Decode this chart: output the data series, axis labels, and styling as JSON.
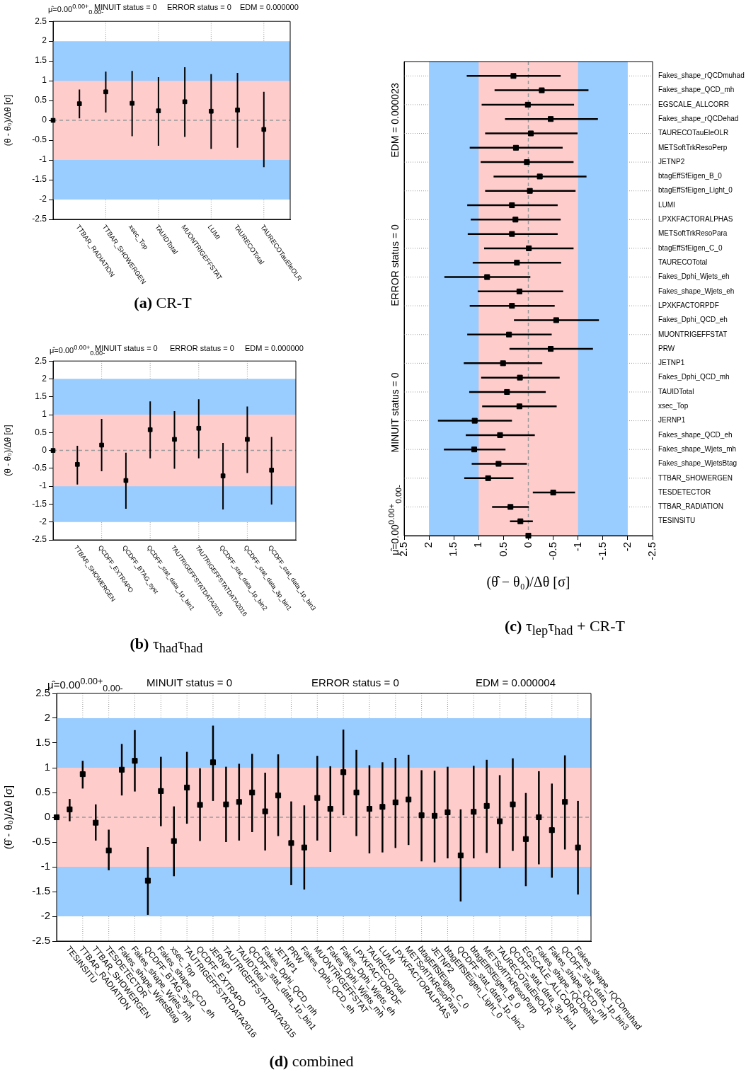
{
  "chart_data": [
    {
      "type": "scatter",
      "title": "(a) CR-T",
      "annotations": [
        "μ̂=0.00$^{0.00+}$$_{0.00-}$",
        "MINUIT status = 0",
        "ERROR status = 0",
        "EDM = 0.000000"
      ],
      "ylabel": "(θ - θ₀)/Δθ [σ]",
      "categories": [
        null,
        "TTBAR_RADIATION",
        "TTBAR_SHOWERGEN",
        "xsec_Top",
        "TAUIDTotal",
        "MUONTRIGEFFSTAT",
        "LUMI",
        "TAURECOTotal",
        "TAURECOTauEleOLR"
      ],
      "values": [
        0,
        0.42,
        0.72,
        0.43,
        0.24,
        0.47,
        0.23,
        0.26,
        -0.23
      ],
      "errors": [
        null,
        [
          0.05,
          0.78
        ],
        [
          0.2,
          1.23
        ],
        [
          -0.4,
          1.25
        ],
        [
          -0.64,
          1.09
        ],
        [
          -0.42,
          1.34
        ],
        [
          -0.72,
          1.17
        ],
        [
          -0.69,
          1.2
        ],
        [
          -1.18,
          0.72
        ]
      ],
      "color": "#000000",
      "marker": "square",
      "ylim": [
        -2.5,
        2.5
      ],
      "yticks": [
        -2.5,
        -2,
        -1.5,
        -1,
        -0.5,
        0,
        0.5,
        1,
        1.5,
        2,
        2.5
      ],
      "grid": "x",
      "bands": [
        {
          "axis": "y",
          "from": -2,
          "to": 2,
          "color": "#99ccff"
        },
        {
          "axis": "y",
          "from": -1,
          "to": 1,
          "color": "#ffcccc"
        }
      ],
      "ref_lines": [
        {
          "axis": "y",
          "value": 0,
          "color": "#999999",
          "line_style": "dashed"
        }
      ]
    },
    {
      "type": "scatter",
      "title": "(b) τ$_{had}$τ$_{had}$",
      "annotations": [
        "μ̂=0.00$^{0.00+}$$_{0.00-}$",
        "MINUIT status = 0",
        "ERROR status = 0",
        "EDM = 0.000000"
      ],
      "ylabel": "(θ - θ₀)/Δθ [σ]",
      "categories": [
        null,
        "TTBAR_SHOWERGEN",
        "QCDFF_EXTRAPO",
        "QCDFF_BTAG_syst",
        "QCDFF_stat_data_1p_bin1",
        "TAUTRIGEFFSTATDATA2015",
        "TAUTRIGEFFSTATDATA2016",
        "QCDFF_stat_data_1p_bin2",
        "QCDFF_stat_data_3p_bin1",
        "QCDFF_stat_data_1p_bin3"
      ],
      "values": [
        0,
        -0.39,
        0.15,
        -0.84,
        0.58,
        0.31,
        0.62,
        -0.71,
        0.31,
        -0.55
      ],
      "errors": [
        null,
        [
          -0.95,
          0.13
        ],
        [
          -0.58,
          0.88
        ],
        [
          -1.63,
          -0.06
        ],
        [
          -0.22,
          1.37
        ],
        [
          -0.51,
          1.1
        ],
        [
          -0.22,
          1.43
        ],
        [
          -1.65,
          0.21
        ],
        [
          -0.63,
          1.23
        ],
        [
          -1.51,
          0.38
        ]
      ],
      "color": "#000000",
      "marker": "square",
      "ylim": [
        -2.5,
        2.5
      ],
      "yticks": [
        -2.5,
        -2,
        -1.5,
        -1,
        -0.5,
        0,
        0.5,
        1,
        1.5,
        2,
        2.5
      ],
      "grid": "x",
      "bands": [
        {
          "axis": "y",
          "from": -2,
          "to": 2,
          "color": "#99ccff"
        },
        {
          "axis": "y",
          "from": -1,
          "to": 1,
          "color": "#ffcccc"
        }
      ],
      "ref_lines": [
        {
          "axis": "y",
          "value": 0,
          "color": "#999999",
          "line_style": "dashed"
        }
      ]
    },
    {
      "type": "scatter",
      "orientation": "horizontal",
      "title": "(c) τ$_{lep}$τ$_{had}$ + CR-T",
      "annotations": [
        "μ̂=0.00$^{0.00+}$$_{0.00-}$",
        "MINUIT status = 0",
        "ERROR status = 0",
        "EDM = 0.000023"
      ],
      "xlabel": "(θ̂ − θ₀)/Δθ [σ]",
      "categories": [
        "Fakes_shape_rQCDmuhad",
        "Fakes_shape_QCD_mh",
        "EGSCALE_ALLCORR",
        "Fakes_shape_rQCDehad",
        "TAURECOTauEleOLR",
        "METSoftTrkResoPerp",
        "JETNP2",
        "btagEffSfEigen_B_0",
        "btagEffSfEigen_Light_0",
        "LUMI",
        "LPXKFACTORALPHAS",
        "METSoftTrkResoPara",
        "btagEffSfEigen_C_0",
        "TAURECOTotal",
        "Fakes_Dphi_Wjets_eh",
        "Fakes_shape_Wjets_eh",
        "LPXKFACTORPDF",
        "Fakes_Dphi_QCD_eh",
        "MUONTRIGEFFSTAT",
        "PRW",
        "JETNP1",
        "Fakes_Dphi_QCD_mh",
        "TAUIDTotal",
        "xsec_Top",
        "JERNP1",
        "Fakes_shape_QCD_eh",
        "Fakes_shape_Wjets_mh",
        "Fakes_shape_WjetsBtag",
        "TTBAR_SHOWERGEN",
        "TESDETECTOR",
        "TTBAR_RADIATION",
        "TESINSITU",
        null
      ],
      "values": [
        0.3,
        -0.27,
        0.01,
        -0.45,
        -0.05,
        0.25,
        0.03,
        -0.23,
        -0.03,
        0.33,
        0.26,
        0.33,
        -0.01,
        0.23,
        0.83,
        0.18,
        0.33,
        -0.56,
        0.39,
        -0.45,
        0.51,
        0.17,
        0.43,
        0.18,
        1.08,
        0.57,
        1.09,
        0.6,
        0.81,
        -0.5,
        0.36,
        0.16,
        0
      ],
      "errors": [
        [
          -0.65,
          1.24
        ],
        [
          -1.21,
          0.68
        ],
        [
          -0.92,
          0.94
        ],
        [
          -1.4,
          0.47
        ],
        [
          -0.99,
          0.87
        ],
        [
          -0.69,
          1.18
        ],
        [
          -0.91,
          0.96
        ],
        [
          -1.17,
          0.7
        ],
        [
          -0.95,
          0.87
        ],
        [
          -0.59,
          1.23
        ],
        [
          -0.65,
          1.16
        ],
        [
          -0.59,
          1.22
        ],
        [
          -0.91,
          0.89
        ],
        [
          -0.66,
          1.12
        ],
        [
          -0.04,
          1.69
        ],
        [
          -0.7,
          1.02
        ],
        [
          -0.53,
          1.18
        ],
        [
          -1.42,
          0.29
        ],
        [
          -0.47,
          1.23
        ],
        [
          -1.3,
          0.38
        ],
        [
          -0.28,
          1.3
        ],
        [
          -0.63,
          0.95
        ],
        [
          -0.35,
          1.19
        ],
        [
          -0.57,
          0.93
        ],
        [
          0.33,
          1.82
        ],
        [
          -0.13,
          1.26
        ],
        [
          0.46,
          1.7
        ],
        [
          0.03,
          1.14
        ],
        [
          0.3,
          1.29
        ],
        [
          -0.94,
          -0.09
        ],
        [
          -0.01,
          0.73
        ],
        [
          -0.09,
          0.37
        ],
        null
      ],
      "color": "#000000",
      "marker": "square",
      "xlim": [
        2.5,
        -2.5
      ],
      "xticks": [
        2.5,
        2,
        1.5,
        1,
        0.5,
        0,
        -0.5,
        -1,
        -1.5,
        -2,
        -2.5
      ],
      "grid": "y",
      "bands": [
        {
          "axis": "x",
          "from": -2,
          "to": 2,
          "color": "#99ccff"
        },
        {
          "axis": "x",
          "from": -1,
          "to": 1,
          "color": "#ffcccc"
        }
      ],
      "ref_lines": [
        {
          "axis": "x",
          "value": 0,
          "color": "#999999",
          "line_style": "dashed"
        }
      ]
    },
    {
      "type": "scatter",
      "title": "(d) combined",
      "annotations": [
        "μ̂=0.00$^{0.00+}$$_{0.00-}$",
        "MINUIT status = 0",
        "ERROR status = 0",
        "EDM = 0.000004"
      ],
      "ylabel": "(θ̂ - θ₀)/Δθ [σ]",
      "categories": [
        null,
        "TESINSITU",
        "TTBAR_RADIATION",
        "TTBAR_SHOWERGEN",
        "TESDETECTOR",
        "Fakes_shape_WjetsBtag",
        "Fakes_shape_Wjets_mh",
        "QCDFF_BTAG_syst",
        "Fakes_shape_QCD_eh",
        "xsec_Top",
        "TAUTRIGEFFSTATDATA2016",
        "QCDFF_EXTRAPO",
        "JERNP1",
        "TAUTRIGEFFSTATDATA2015",
        "TAUIDTotal",
        "QCDFF_stat_data_1p_bin1",
        "Fakes_Dphi_QCD_mh",
        "JETNP1",
        "PRW",
        "Fakes_Dphi_QCD_eh",
        "MUONTRIGEFFSTAT",
        "Fakes_Dphi_Wjets_mh",
        "Fakes_Dphi_Wjets_eh",
        "LPXKFACTORPDF",
        "TAURECOTotal",
        "LUMI",
        "LPXKFACTORALPHAS",
        "METSoftTrkResoPara",
        "btagEffSfEigen_C_0",
        "JETNP2",
        "btagEffSfEigen_Light_0",
        "QCDFF_stat_data_1p_bin2",
        "btagEffSfEigen_B_0",
        "METSoftTrkResoPerp",
        "TAURECOTauEleOLR",
        "QCDFF_stat_data_3p_bin1",
        "EGSCALE_ALLCORR",
        "Fakes_shape_rQCDehad",
        "Fakes_shape_QCD_mh",
        "QCDFF_stat_data_1p_bin3",
        "Fakes_shape_rQCDmuhad"
      ],
      "values": [
        0,
        0.16,
        0.87,
        -0.11,
        -0.67,
        0.96,
        1.14,
        -1.28,
        0.53,
        -0.48,
        0.6,
        0.25,
        1.11,
        0.26,
        0.31,
        0.5,
        0.12,
        0.44,
        -0.52,
        -0.61,
        0.39,
        0.17,
        0.91,
        0.5,
        0.17,
        0.21,
        0.3,
        0.36,
        0.04,
        0.03,
        0.1,
        -0.77,
        0.11,
        0.23,
        -0.08,
        0.26,
        -0.44,
        0.0,
        -0.26,
        0.31,
        -0.61
      ],
      "errors": [
        null,
        [
          -0.08,
          0.37
        ],
        [
          0.58,
          1.14
        ],
        [
          -0.47,
          0.26
        ],
        [
          -1.07,
          -0.25
        ],
        [
          0.44,
          1.48
        ],
        [
          0.52,
          1.76
        ],
        [
          -1.97,
          -0.6
        ],
        [
          -0.18,
          1.22
        ],
        [
          -1.19,
          0.22
        ],
        [
          -0.13,
          1.32
        ],
        [
          -0.48,
          0.99
        ],
        [
          0.33,
          1.85
        ],
        [
          -0.5,
          1.02
        ],
        [
          -0.47,
          1.08
        ],
        [
          -0.3,
          1.28
        ],
        [
          -0.67,
          0.9
        ],
        [
          -0.38,
          1.27
        ],
        [
          -1.37,
          0.32
        ],
        [
          -1.46,
          0.24
        ],
        [
          -0.47,
          1.24
        ],
        [
          -0.7,
          1.03
        ],
        [
          0.04,
          1.77
        ],
        [
          -0.38,
          1.36
        ],
        [
          -0.73,
          1.05
        ],
        [
          -0.71,
          1.11
        ],
        [
          -0.62,
          1.2
        ],
        [
          -0.56,
          1.26
        ],
        [
          -0.89,
          0.95
        ],
        [
          -0.91,
          0.94
        ],
        [
          -0.83,
          1.02
        ],
        [
          -1.7,
          0.16
        ],
        [
          -0.83,
          1.04
        ],
        [
          -0.72,
          1.16
        ],
        [
          -1.03,
          0.85
        ],
        [
          -0.68,
          1.19
        ],
        [
          -1.39,
          0.49
        ],
        [
          -0.95,
          0.93
        ],
        [
          -1.22,
          0.68
        ],
        [
          -0.65,
          1.25
        ],
        [
          -1.56,
          0.33
        ]
      ],
      "color": "#000000",
      "marker": "square",
      "ylim": [
        -2.5,
        2.5
      ],
      "yticks": [
        -2.5,
        -2,
        -1.5,
        -1,
        -0.5,
        0,
        0.5,
        1,
        1.5,
        2,
        2.5
      ],
      "grid": "x",
      "bands": [
        {
          "axis": "y",
          "from": -2,
          "to": 2,
          "color": "#99ccff"
        },
        {
          "axis": "y",
          "from": -1,
          "to": 1,
          "color": "#ffcccc"
        }
      ],
      "ref_lines": [
        {
          "axis": "y",
          "value": 0,
          "color": "#999999",
          "line_style": "dashed"
        }
      ]
    }
  ]
}
